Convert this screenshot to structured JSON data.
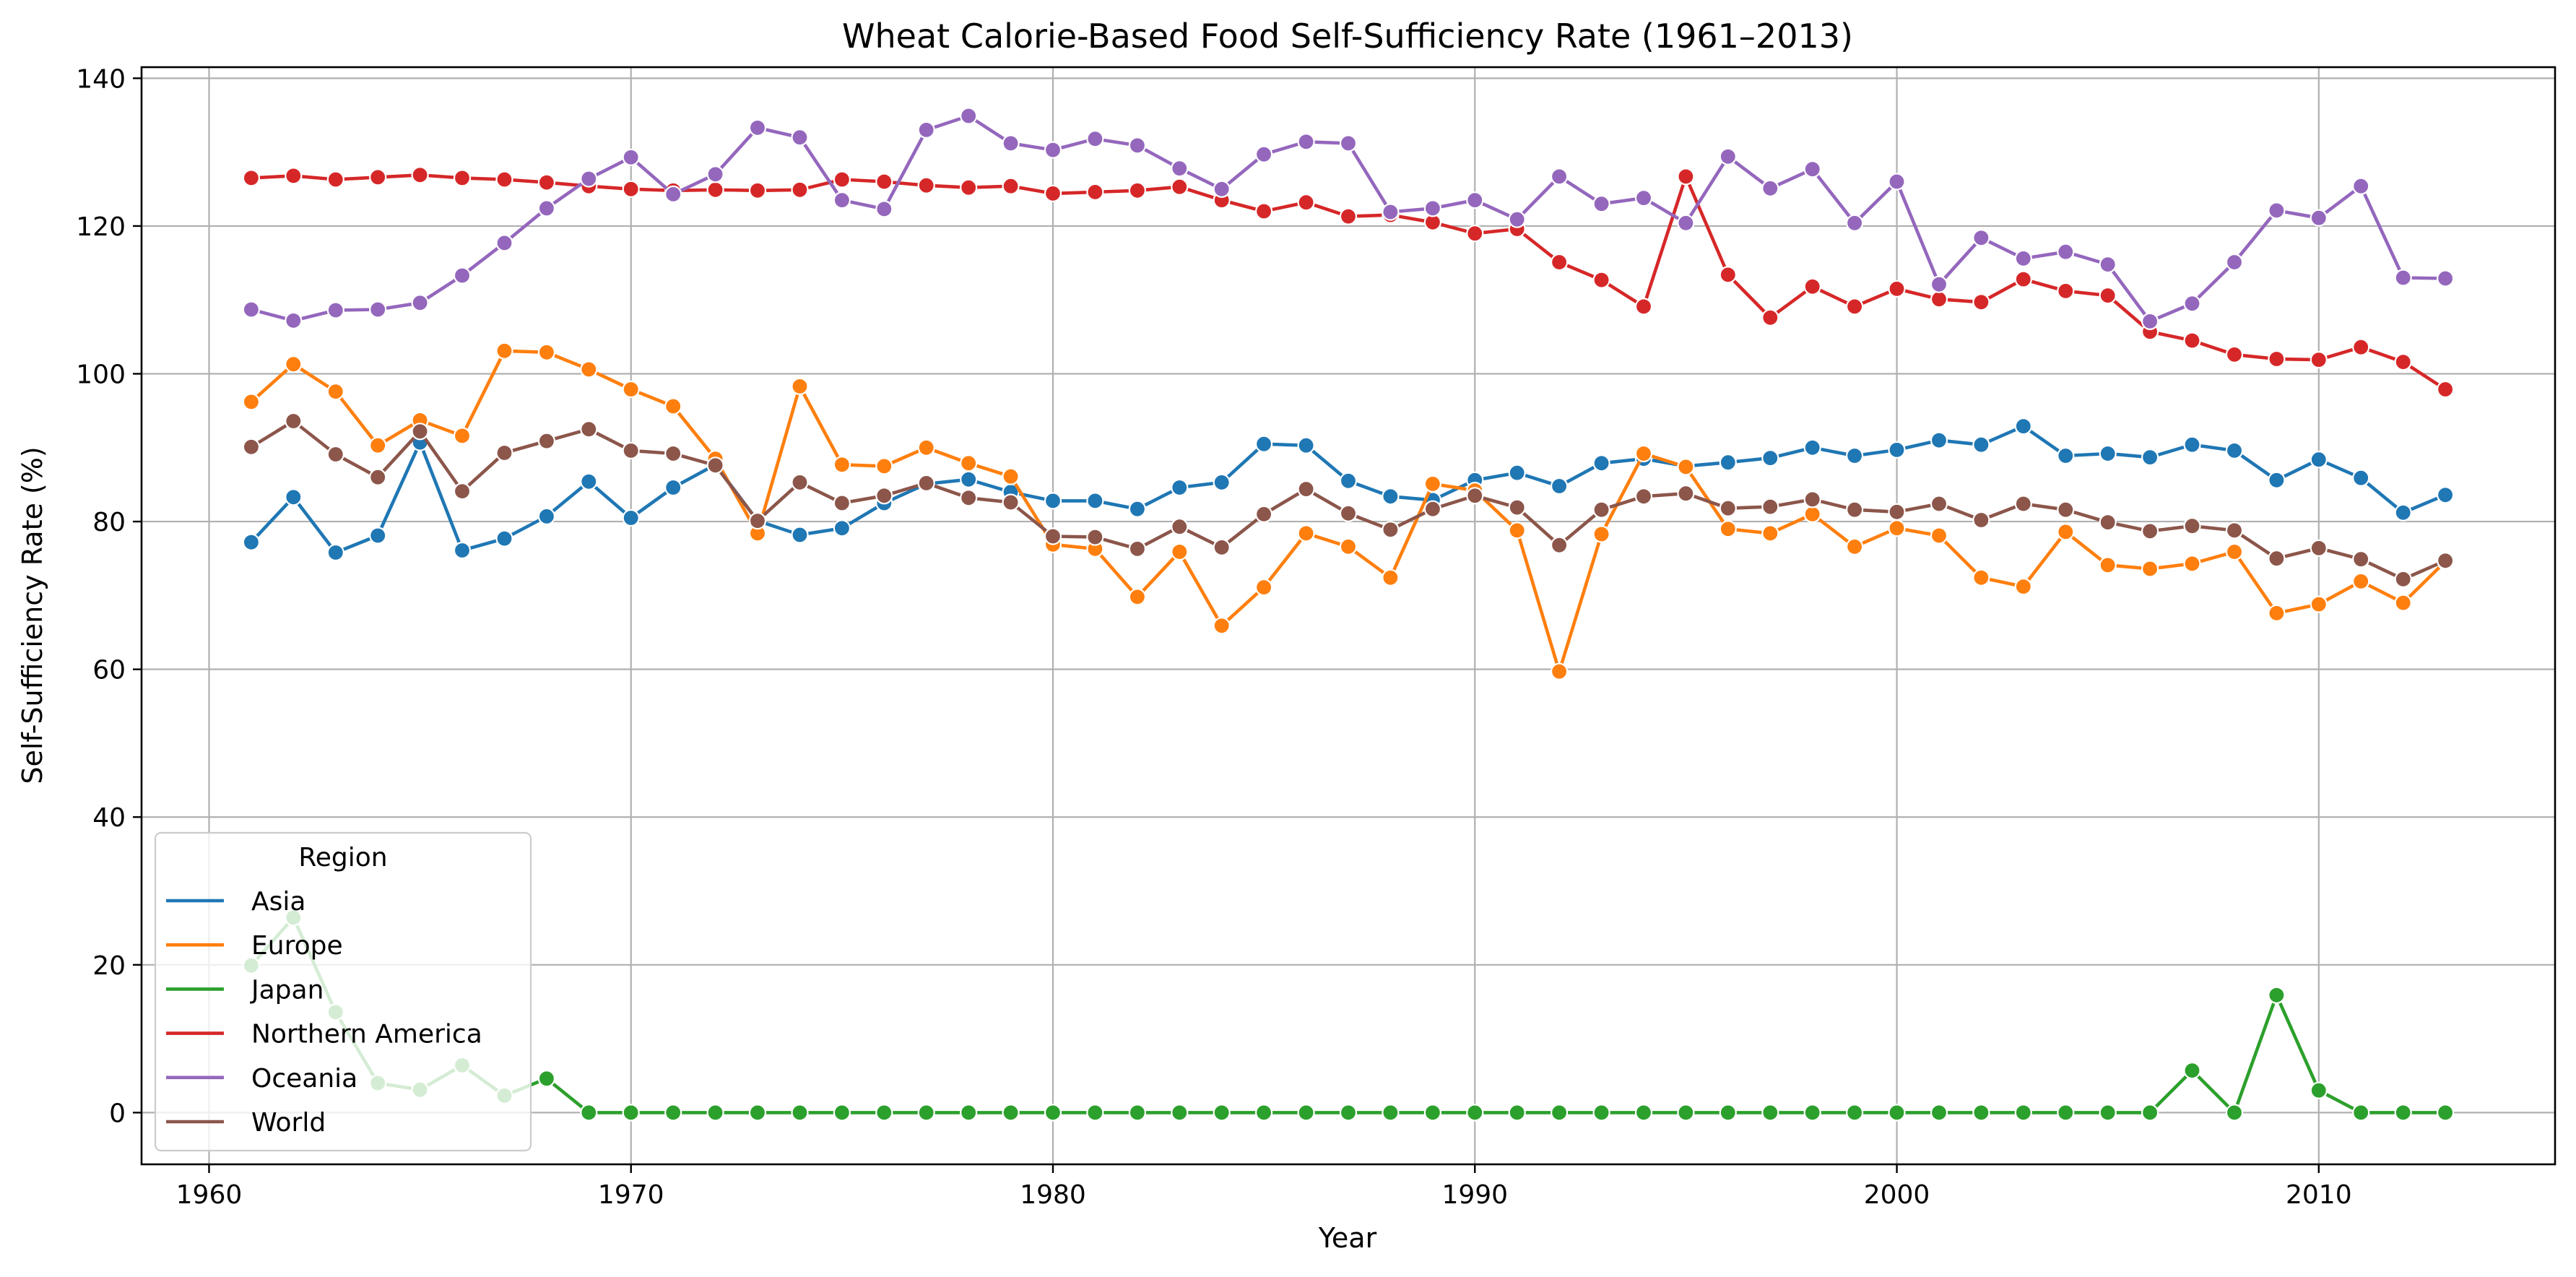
{
  "chart_data": {
    "type": "line",
    "title": "Wheat Calorie-Based Food Self-Sufficiency Rate (1961–2013)",
    "xlabel": "Year",
    "ylabel": "Self-Sufficiency Rate (%)",
    "xlim": [
      1958.4,
      2015.6
    ],
    "ylim": [
      -7,
      141.5
    ],
    "xticks": [
      1960,
      1970,
      1980,
      1990,
      2000,
      2010
    ],
    "yticks": [
      0,
      20,
      40,
      60,
      80,
      100,
      120,
      140
    ],
    "grid": true,
    "legend": {
      "title": "Region",
      "placement": "lower-left"
    },
    "x": [
      1961,
      1962,
      1963,
      1964,
      1965,
      1966,
      1967,
      1968,
      1969,
      1970,
      1971,
      1972,
      1973,
      1974,
      1975,
      1976,
      1977,
      1978,
      1979,
      1980,
      1981,
      1982,
      1983,
      1984,
      1985,
      1986,
      1987,
      1988,
      1989,
      1990,
      1991,
      1992,
      1993,
      1994,
      1995,
      1996,
      1997,
      1998,
      1999,
      2000,
      2001,
      2002,
      2003,
      2004,
      2005,
      2006,
      2007,
      2008,
      2009,
      2010,
      2011,
      2012,
      2013
    ],
    "series": [
      {
        "name": "Asia",
        "color": "#1f77b4",
        "values": [
          77.2,
          83.3,
          75.8,
          78.1,
          90.7,
          76.1,
          77.7,
          80.7,
          85.4,
          80.5,
          84.6,
          87.7,
          80.1,
          78.2,
          79.1,
          82.5,
          85.1,
          85.7,
          84.0,
          82.8,
          82.8,
          81.7,
          84.6,
          85.3,
          90.5,
          90.3,
          85.5,
          83.4,
          82.9,
          85.6,
          86.6,
          84.8,
          87.9,
          88.5,
          87.5,
          88.0,
          88.6,
          90.0,
          88.9,
          89.7,
          91.0,
          90.4,
          92.9,
          88.9,
          89.2,
          88.7,
          90.4,
          89.6,
          85.6,
          88.4,
          85.9,
          81.2,
          83.6
        ]
      },
      {
        "name": "Europe",
        "color": "#ff7f0e",
        "values": [
          96.2,
          101.3,
          97.6,
          90.3,
          93.7,
          91.6,
          103.1,
          102.9,
          100.6,
          97.9,
          95.6,
          88.5,
          78.4,
          98.3,
          87.7,
          87.5,
          90.0,
          87.9,
          86.1,
          76.9,
          76.3,
          69.8,
          75.9,
          65.9,
          71.1,
          78.4,
          76.6,
          72.4,
          85.1,
          84.2,
          78.8,
          59.7,
          78.3,
          89.2,
          87.4,
          79.0,
          78.4,
          81.0,
          76.6,
          79.1,
          78.1,
          72.4,
          71.2,
          78.6,
          74.1,
          73.6,
          74.3,
          75.9,
          67.6,
          68.8,
          71.9,
          69.0,
          74.6
        ]
      },
      {
        "name": "Japan",
        "color": "#2ca02c",
        "values": [
          19.9,
          26.4,
          13.6,
          4.0,
          3.1,
          6.4,
          2.3,
          4.6,
          0,
          0,
          0,
          0,
          0,
          0,
          0,
          0,
          0,
          0,
          0,
          0,
          0,
          0,
          0,
          0,
          0,
          0,
          0,
          0,
          0,
          0,
          0,
          0,
          0,
          0,
          0,
          0,
          0,
          0,
          0,
          0,
          0,
          0,
          0,
          0,
          0,
          0,
          5.7,
          0,
          15.9,
          3.0,
          0,
          0,
          0
        ]
      },
      {
        "name": "Northern America",
        "color": "#d62728",
        "values": [
          126.5,
          126.8,
          126.3,
          126.6,
          126.9,
          126.5,
          126.3,
          125.9,
          125.4,
          125.0,
          124.8,
          124.9,
          124.8,
          124.9,
          126.3,
          126.0,
          125.5,
          125.2,
          125.4,
          124.4,
          124.6,
          124.8,
          125.3,
          123.5,
          122.0,
          123.2,
          121.3,
          121.5,
          120.5,
          119.0,
          119.6,
          115.1,
          112.7,
          109.1,
          126.7,
          113.4,
          107.6,
          111.8,
          109.1,
          111.5,
          110.1,
          109.7,
          112.8,
          111.2,
          110.6,
          105.7,
          104.5,
          102.6,
          102.0,
          101.9,
          103.6,
          101.6,
          97.9
        ]
      },
      {
        "name": "Oceania",
        "color": "#9467bd",
        "values": [
          108.7,
          107.2,
          108.6,
          108.7,
          109.6,
          113.3,
          117.7,
          122.4,
          126.4,
          129.3,
          124.3,
          127.0,
          133.3,
          132.0,
          123.5,
          122.3,
          133.0,
          134.9,
          131.2,
          130.3,
          131.8,
          130.9,
          127.8,
          125.0,
          129.7,
          131.4,
          131.2,
          121.9,
          122.4,
          123.5,
          120.9,
          126.7,
          123.0,
          123.8,
          120.4,
          129.4,
          125.1,
          127.7,
          120.4,
          126.0,
          112.1,
          118.4,
          115.6,
          116.5,
          114.8,
          107.1,
          109.5,
          115.1,
          122.1,
          121.1,
          125.4,
          113.0,
          112.9
        ]
      },
      {
        "name": "World",
        "color": "#8c564b",
        "values": [
          90.1,
          93.6,
          89.1,
          86.0,
          92.2,
          84.1,
          89.3,
          90.9,
          92.5,
          89.6,
          89.2,
          87.6,
          80.1,
          85.3,
          82.5,
          83.5,
          85.2,
          83.2,
          82.6,
          78.0,
          77.9,
          76.3,
          79.3,
          76.5,
          81.0,
          84.4,
          81.1,
          78.9,
          81.7,
          83.5,
          81.9,
          76.8,
          81.6,
          83.4,
          83.8,
          81.8,
          82.0,
          83.0,
          81.6,
          81.3,
          82.4,
          80.2,
          82.4,
          81.6,
          79.9,
          78.7,
          79.4,
          78.8,
          75.0,
          76.4,
          74.9,
          72.2,
          74.7
        ]
      }
    ]
  }
}
